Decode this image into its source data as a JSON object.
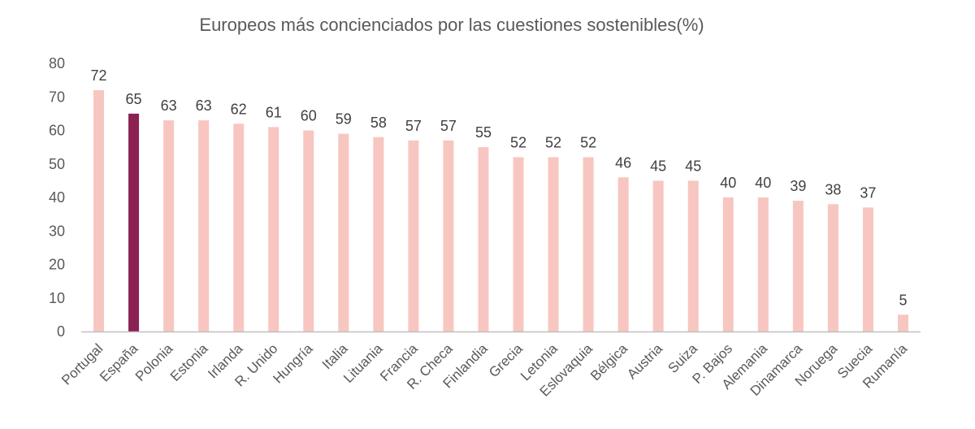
{
  "chart_data": {
    "type": "bar",
    "title": "Europeos más concienciados por las cuestiones sostenibles(%)",
    "xlabel": "",
    "ylabel": "",
    "ylim": [
      0,
      80
    ],
    "yticks": [
      0,
      10,
      20,
      30,
      40,
      50,
      60,
      70,
      80
    ],
    "grid": false,
    "legend": "none",
    "categories": [
      "Portugal",
      "España",
      "Polonia",
      "Estonia",
      "Irlanda",
      "R. Unido",
      "Hungría",
      "Italia",
      "Lituania",
      "Francia",
      "R. Checa",
      "Finlandia",
      "Grecia",
      "Letonia",
      "Eslovaquia",
      "Bélgica",
      "Austria",
      "Suiza",
      "P. Bajos",
      "Alemania",
      "Dinamarca",
      "Noruega",
      "Suecia",
      "Rumanía"
    ],
    "values": [
      72,
      65,
      63,
      63,
      62,
      61,
      60,
      59,
      58,
      57,
      57,
      55,
      52,
      52,
      52,
      46,
      45,
      45,
      40,
      40,
      39,
      38,
      37,
      5
    ],
    "highlight_category": "España",
    "colors": {
      "bar": "#f8c6c0",
      "highlight": "#8b2252",
      "axis": "#bfbfbf"
    }
  }
}
